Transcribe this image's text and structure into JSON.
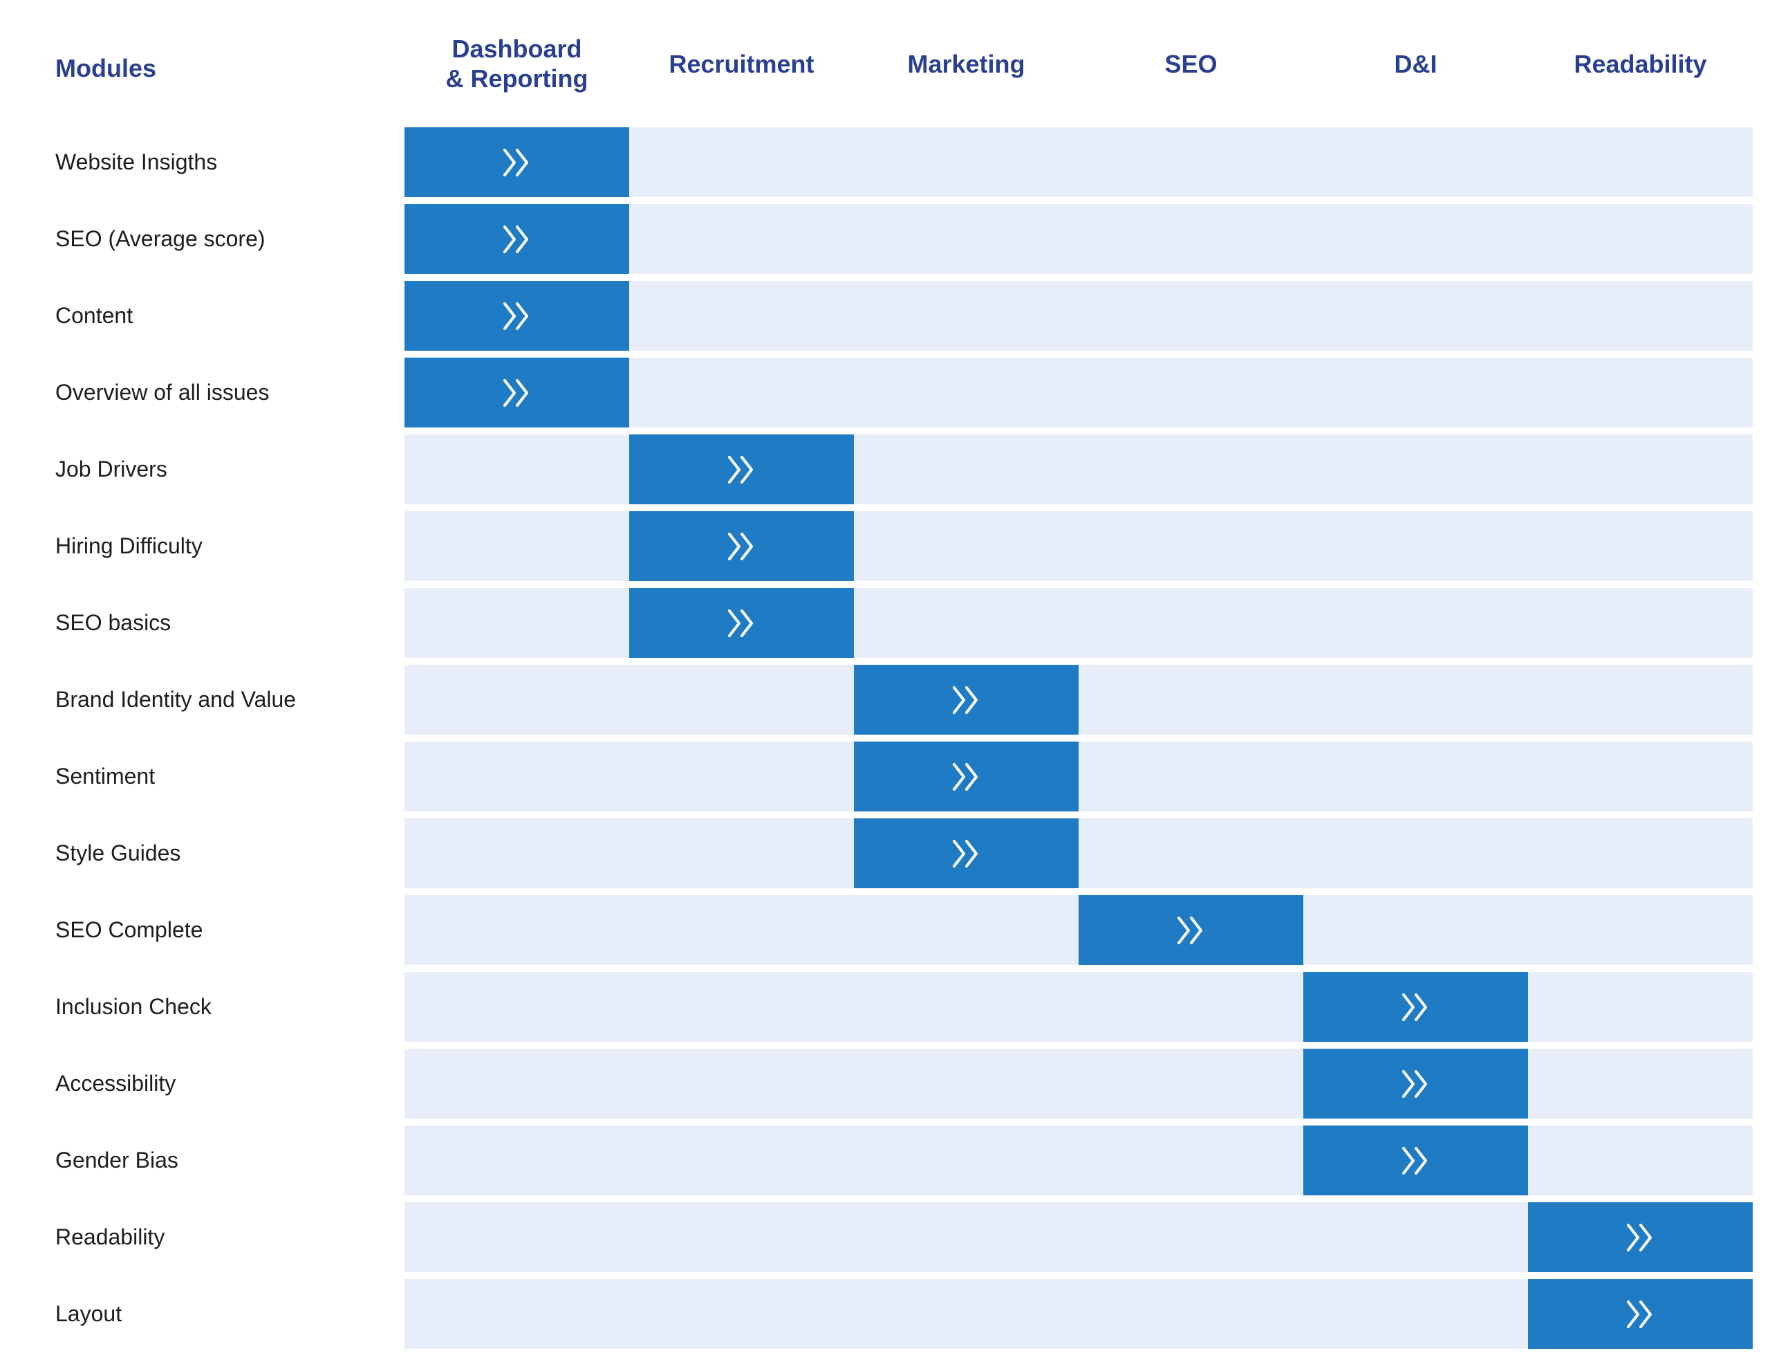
{
  "modules_heading": "Modules",
  "columns": [
    {
      "label": "Dashboard\n& Reporting"
    },
    {
      "label": "Recruitment"
    },
    {
      "label": "Marketing"
    },
    {
      "label": "SEO"
    },
    {
      "label": "D&I"
    },
    {
      "label": "Readability"
    }
  ],
  "rows": [
    {
      "label": "Website Insigths",
      "column": 0
    },
    {
      "label": "SEO (Average score)",
      "column": 0
    },
    {
      "label": "Content",
      "column": 0
    },
    {
      "label": "Overview of all issues",
      "column": 0
    },
    {
      "label": "Job Drivers",
      "column": 1
    },
    {
      "label": "Hiring Difficulty",
      "column": 1
    },
    {
      "label": "SEO basics",
      "column": 1
    },
    {
      "label": "Brand Identity and Value",
      "column": 2
    },
    {
      "label": "Sentiment",
      "column": 2
    },
    {
      "label": "Style Guides",
      "column": 2
    },
    {
      "label": "SEO Complete",
      "column": 3
    },
    {
      "label": "Inclusion Check",
      "column": 4
    },
    {
      "label": "Accessibility",
      "column": 4
    },
    {
      "label": "Gender Bias",
      "column": 4
    },
    {
      "label": "Readability",
      "column": 5
    },
    {
      "label": "Layout",
      "column": 5
    }
  ],
  "icon": "double-chevron-right-icon",
  "colors": {
    "heading": "#2a3f8f",
    "track": "#e7eef9",
    "active": "#1f7bc3",
    "icon": "#ffffff"
  }
}
